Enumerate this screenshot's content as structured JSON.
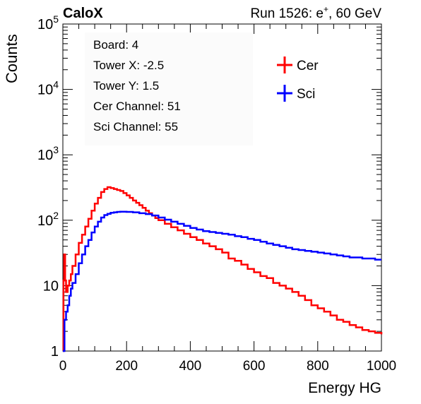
{
  "header": {
    "experiment": "CaloX",
    "run_prefix": "Run 1526: e",
    "run_superscript": "+",
    "run_suffix": ", 60 GeV"
  },
  "info": [
    "Board: 4",
    "Tower X: -2.5",
    "Tower Y: 1.5",
    "Cer Channel: 51",
    "Sci Channel: 55"
  ],
  "colors": {
    "cer": "#ff0000",
    "sci": "#0000ff"
  },
  "chart_data": {
    "type": "line",
    "xlabel": "Energy HG",
    "ylabel": "Counts",
    "xlim": [
      0,
      1000
    ],
    "ylim": [
      1,
      100000
    ],
    "yscale": "log",
    "x_ticks": [
      "0",
      "200",
      "400",
      "600",
      "800",
      "1000"
    ],
    "y_ticks": [
      "1",
      "10",
      "10^2",
      "10^3",
      "10^4",
      "10^5"
    ],
    "legend": {
      "placement": "top-right",
      "entries": [
        "Cer",
        "Sci"
      ]
    },
    "series": [
      {
        "name": "Cer",
        "color": "#ff0000",
        "points": [
          [
            0,
            1
          ],
          [
            2,
            12
          ],
          [
            4,
            30
          ],
          [
            7,
            12
          ],
          [
            10,
            8
          ],
          [
            15,
            10
          ],
          [
            20,
            12
          ],
          [
            25,
            15
          ],
          [
            30,
            20
          ],
          [
            40,
            30
          ],
          [
            50,
            45
          ],
          [
            60,
            60
          ],
          [
            70,
            80
          ],
          [
            80,
            105
          ],
          [
            90,
            140
          ],
          [
            100,
            180
          ],
          [
            110,
            220
          ],
          [
            120,
            270
          ],
          [
            130,
            300
          ],
          [
            140,
            320
          ],
          [
            150,
            310
          ],
          [
            160,
            300
          ],
          [
            170,
            290
          ],
          [
            180,
            280
          ],
          [
            190,
            260
          ],
          [
            200,
            240
          ],
          [
            210,
            220
          ],
          [
            220,
            200
          ],
          [
            230,
            185
          ],
          [
            240,
            170
          ],
          [
            250,
            155
          ],
          [
            260,
            140
          ],
          [
            270,
            128
          ],
          [
            280,
            118
          ],
          [
            290,
            108
          ],
          [
            300,
            100
          ],
          [
            320,
            88
          ],
          [
            340,
            78
          ],
          [
            360,
            70
          ],
          [
            380,
            62
          ],
          [
            400,
            55
          ],
          [
            420,
            50
          ],
          [
            440,
            44
          ],
          [
            460,
            40
          ],
          [
            480,
            36
          ],
          [
            500,
            32
          ],
          [
            520,
            26
          ],
          [
            540,
            24
          ],
          [
            560,
            21
          ],
          [
            580,
            18
          ],
          [
            600,
            16
          ],
          [
            620,
            14
          ],
          [
            640,
            13
          ],
          [
            660,
            11
          ],
          [
            680,
            10
          ],
          [
            700,
            9
          ],
          [
            720,
            8
          ],
          [
            740,
            7
          ],
          [
            760,
            6
          ],
          [
            780,
            5
          ],
          [
            800,
            4.5
          ],
          [
            820,
            4
          ],
          [
            840,
            3.5
          ],
          [
            860,
            3
          ],
          [
            880,
            2.8
          ],
          [
            900,
            2.5
          ],
          [
            920,
            2.3
          ],
          [
            940,
            2.1
          ],
          [
            960,
            2
          ],
          [
            980,
            1.9
          ],
          [
            1000,
            1.8
          ]
        ]
      },
      {
        "name": "Sci",
        "color": "#0000ff",
        "points": [
          [
            0,
            1
          ],
          [
            5,
            3
          ],
          [
            10,
            4
          ],
          [
            15,
            5
          ],
          [
            20,
            7
          ],
          [
            25,
            9
          ],
          [
            30,
            11
          ],
          [
            40,
            15
          ],
          [
            50,
            22
          ],
          [
            60,
            30
          ],
          [
            70,
            40
          ],
          [
            80,
            50
          ],
          [
            90,
            65
          ],
          [
            100,
            80
          ],
          [
            110,
            95
          ],
          [
            120,
            110
          ],
          [
            130,
            120
          ],
          [
            140,
            125
          ],
          [
            150,
            130
          ],
          [
            160,
            132
          ],
          [
            170,
            134
          ],
          [
            180,
            135
          ],
          [
            190,
            135
          ],
          [
            200,
            134
          ],
          [
            220,
            132
          ],
          [
            240,
            128
          ],
          [
            260,
            124
          ],
          [
            280,
            118
          ],
          [
            300,
            110
          ],
          [
            320,
            102
          ],
          [
            340,
            95
          ],
          [
            360,
            88
          ],
          [
            380,
            82
          ],
          [
            400,
            76
          ],
          [
            420,
            72
          ],
          [
            440,
            68
          ],
          [
            460,
            66
          ],
          [
            480,
            64
          ],
          [
            500,
            62
          ],
          [
            520,
            60
          ],
          [
            540,
            57
          ],
          [
            560,
            55
          ],
          [
            580,
            52
          ],
          [
            600,
            50
          ],
          [
            620,
            47
          ],
          [
            640,
            44
          ],
          [
            660,
            42
          ],
          [
            680,
            40
          ],
          [
            700,
            38
          ],
          [
            720,
            36
          ],
          [
            740,
            35
          ],
          [
            760,
            34
          ],
          [
            780,
            33
          ],
          [
            800,
            32
          ],
          [
            820,
            31
          ],
          [
            840,
            30
          ],
          [
            860,
            29
          ],
          [
            880,
            28
          ],
          [
            900,
            27
          ],
          [
            920,
            27
          ],
          [
            940,
            26
          ],
          [
            960,
            26
          ],
          [
            980,
            25
          ],
          [
            1000,
            25
          ]
        ]
      }
    ]
  }
}
